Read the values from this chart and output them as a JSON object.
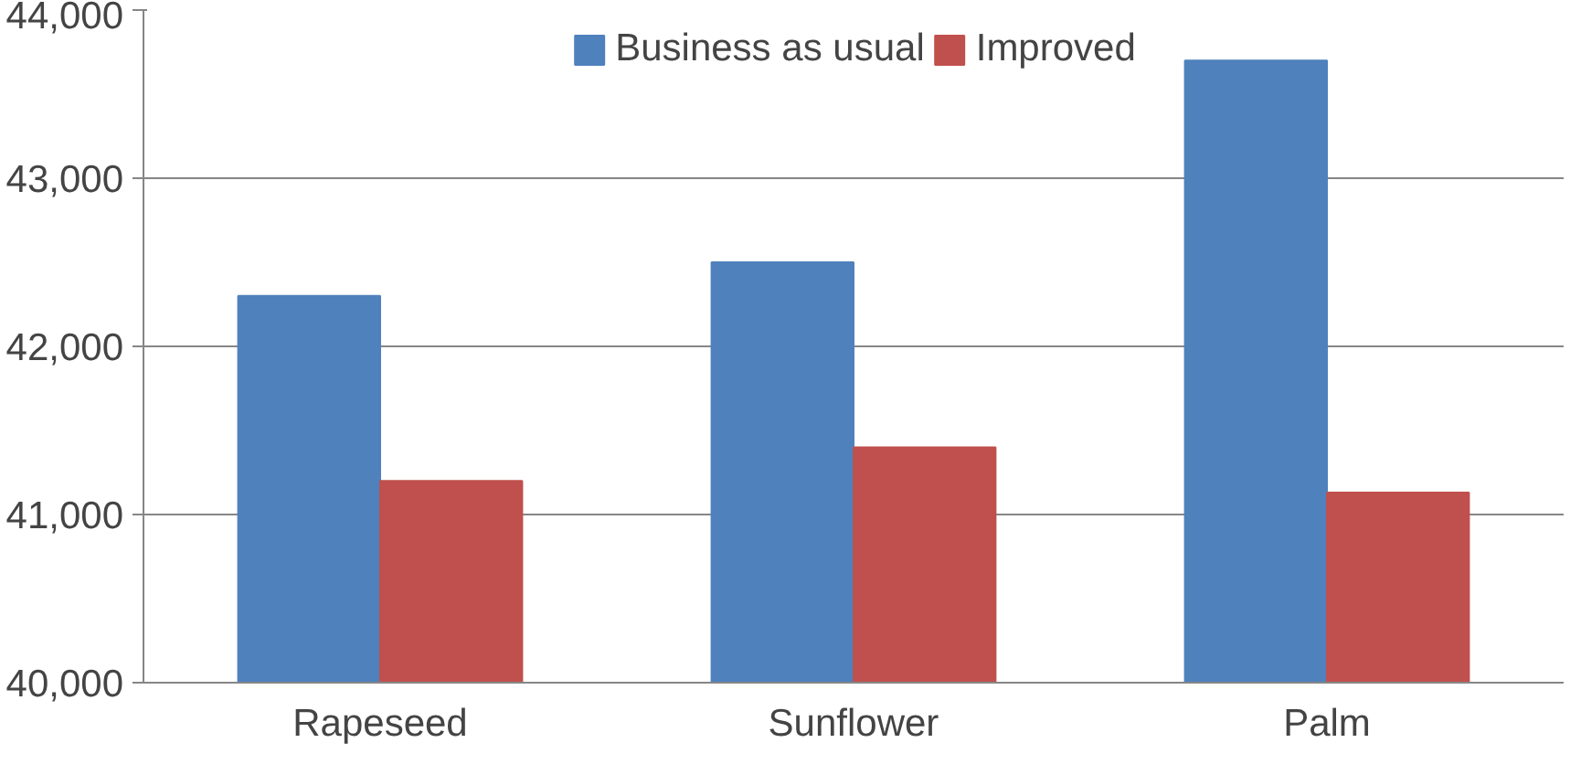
{
  "chart_data": {
    "type": "bar",
    "categories": [
      "Rapeseed",
      "Sunflower",
      "Palm"
    ],
    "series": [
      {
        "name": "Business as usual",
        "color": "#4f81bd",
        "values": [
          42300,
          42500,
          43700
        ]
      },
      {
        "name": "Improved",
        "color": "#c0504d",
        "values": [
          41200,
          41400,
          41130
        ]
      }
    ],
    "ylim": [
      40000,
      44000
    ],
    "yticks": [
      {
        "value": 40000,
        "label": "40,000"
      },
      {
        "value": 41000,
        "label": "41,000"
      },
      {
        "value": 42000,
        "label": "42,000"
      },
      {
        "value": 43000,
        "label": "43,000"
      },
      {
        "value": 44000,
        "label": "44,000"
      }
    ],
    "grid": "y",
    "legend": "top"
  }
}
